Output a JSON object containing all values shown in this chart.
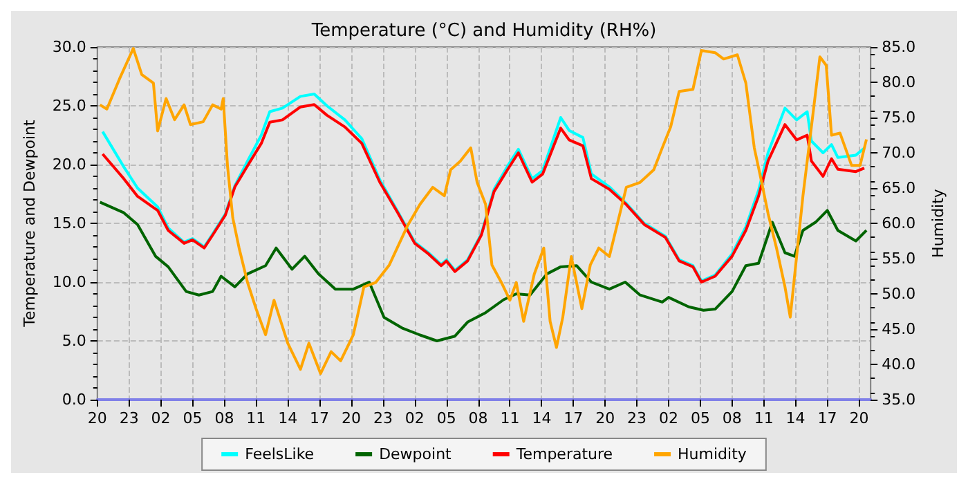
{
  "chart_data": {
    "type": "line",
    "title": "Temperature (°C) and Humidity (RH%)",
    "ylabel": "Temperature and Dewpoint",
    "y2label": "Humidity",
    "xlim": [
      "--01-01T20:00",
      "--01-04T21:06"
    ],
    "xticks": [
      {
        "value": "--01-01T20:00",
        "label": "20"
      },
      {
        "value": "--01-01T23:00",
        "label": "23"
      },
      {
        "value": "--01-02T02:00",
        "label": "02"
      },
      {
        "value": "--01-02T05:00",
        "label": "05"
      },
      {
        "value": "--01-02T08:00",
        "label": "08"
      },
      {
        "value": "--01-02T11:00",
        "label": "11"
      },
      {
        "value": "--01-02T14:00",
        "label": "14"
      },
      {
        "value": "--01-02T17:00",
        "label": "17"
      },
      {
        "value": "--01-02T20:00",
        "label": "20"
      },
      {
        "value": "--01-02T23:00",
        "label": "23"
      },
      {
        "value": "--01-03T02:00",
        "label": "02"
      },
      {
        "value": "--01-03T05:00",
        "label": "05"
      },
      {
        "value": "--01-03T08:00",
        "label": "08"
      },
      {
        "value": "--01-03T11:00",
        "label": "11"
      },
      {
        "value": "--01-03T14:00",
        "label": "14"
      },
      {
        "value": "--01-03T17:00",
        "label": "17"
      },
      {
        "value": "--01-03T20:00",
        "label": "20"
      },
      {
        "value": "--01-03T23:00",
        "label": "23"
      },
      {
        "value": "--01-04T02:00",
        "label": "02"
      },
      {
        "value": "--01-04T05:00",
        "label": "05"
      },
      {
        "value": "--01-04T08:00",
        "label": "08"
      },
      {
        "value": "--01-04T11:00",
        "label": "11"
      },
      {
        "value": "--01-04T14:00",
        "label": "14"
      },
      {
        "value": "--01-04T17:00",
        "label": "17"
      },
      {
        "value": "--01-04T20:00",
        "label": "20"
      }
    ],
    "ylim": [
      0,
      30
    ],
    "yticks": [
      {
        "value": 0,
        "label": "0.0"
      },
      {
        "value": 5,
        "label": "5.0"
      },
      {
        "value": 10,
        "label": "10.0"
      },
      {
        "value": 15,
        "label": "15.0"
      },
      {
        "value": 20,
        "label": "20.0"
      },
      {
        "value": 25,
        "label": "25.0"
      },
      {
        "value": 30,
        "label": "30.0"
      }
    ],
    "y2lim": [
      35,
      85
    ],
    "y2ticks": [
      {
        "value": 35,
        "label": "35.0"
      },
      {
        "value": 40,
        "label": "40.0"
      },
      {
        "value": 45,
        "label": "45.0"
      },
      {
        "value": 50,
        "label": "50.0"
      },
      {
        "value": 55,
        "label": "55.0"
      },
      {
        "value": 60,
        "label": "60.0"
      },
      {
        "value": 65,
        "label": "65.0"
      },
      {
        "value": 70,
        "label": "70.0"
      },
      {
        "value": 75,
        "label": "75.0"
      },
      {
        "value": 80,
        "label": "80.0"
      },
      {
        "value": 85,
        "label": "85.0"
      }
    ],
    "grid": true,
    "legend": "bottom",
    "marker": "none",
    "line_style": "solid",
    "series": [
      {
        "name": "FeelsLike",
        "color": "#00ffff",
        "x": [
          "--01-01T20:30",
          "--01-01T22:30",
          "--01-01T23:48",
          "--01-02T01:42",
          "--01-02T02:42",
          "--01-02T04:12",
          "--01-02T05:00",
          "--01-02T06:06",
          "--01-02T06:54",
          "--01-02T08:06",
          "--01-02T09:00",
          "--01-02T10:12",
          "--01-02T11:30",
          "--01-02T12:18",
          "--01-02T13:30",
          "--01-02T15:12",
          "--01-02T16:30",
          "--01-02T17:42",
          "--01-02T19:24",
          "--01-02T21:00",
          "--01-02T22:42",
          "--01-03T00:24",
          "--01-03T02:00",
          "--01-03T03:18",
          "--01-03T04:30",
          "--01-03T05:00",
          "--01-03T05:48",
          "--01-03T07:00",
          "--01-03T08:18",
          "--01-03T09:30",
          "--01-03T10:48",
          "--01-03T11:48",
          "--01-03T13:06",
          "--01-03T14:06",
          "--01-03T15:48",
          "--01-03T16:36",
          "--01-03T17:54",
          "--01-03T18:42",
          "--01-03T20:24",
          "--01-03T22:00",
          "--01-03T23:42",
          "--01-04T01:42",
          "--01-04T03:00",
          "--01-04T04:18",
          "--01-04T05:06",
          "--01-04T06:24",
          "--01-04T08:00",
          "--01-04T09:18",
          "--01-04T10:30",
          "--01-04T11:24",
          "--01-04T13:00",
          "--01-04T14:06",
          "--01-04T15:06",
          "--01-04T15:30",
          "--01-04T16:36",
          "--01-04T17:24",
          "--01-04T18:00",
          "--01-04T19:42",
          "--01-04T20:30"
        ],
        "values": [
          22.8,
          19.8,
          18,
          16.4,
          14.6,
          13.4,
          13.7,
          13,
          14.1,
          15.8,
          18.2,
          20.3,
          22.5,
          24.5,
          24.8,
          25.8,
          26,
          25,
          23.8,
          22.2,
          18.7,
          16,
          13.4,
          12.5,
          11.5,
          11.9,
          11,
          11.9,
          14.1,
          17.9,
          19.9,
          21.3,
          18.8,
          19.5,
          24,
          22.9,
          22.3,
          19.2,
          18.1,
          16.7,
          15,
          13.9,
          11.9,
          11.4,
          10.1,
          10.6,
          12.4,
          14.7,
          17.8,
          21,
          24.8,
          23.8,
          24.5,
          22,
          21,
          21.7,
          20.6,
          20.8,
          21.4
        ]
      },
      {
        "name": "Dewpoint",
        "color": "#006400",
        "x": [
          "--01-01T20:15",
          "--01-01T22:30",
          "--01-01T23:48",
          "--01-02T01:30",
          "--01-02T02:42",
          "--01-02T04:24",
          "--01-02T05:36",
          "--01-02T06:54",
          "--01-02T07:42",
          "--01-02T09:00",
          "--01-02T10:12",
          "--01-02T11:54",
          "--01-02T12:54",
          "--01-02T14:24",
          "--01-02T15:36",
          "--01-02T16:54",
          "--01-02T18:30",
          "--01-02T20:12",
          "--01-02T21:42",
          "--01-02T23:06",
          "--01-03T00:48",
          "--01-03T02:30",
          "--01-03T04:06",
          "--01-03T05:48",
          "--01-03T07:00",
          "--01-03T08:42",
          "--01-03T10:24",
          "--01-03T11:36",
          "--01-03T12:54",
          "--01-03T14:30",
          "--01-03T15:48",
          "--01-03T17:18",
          "--01-03T18:42",
          "--01-03T20:24",
          "--01-03T21:54",
          "--01-03T23:18",
          "--01-04T01:24",
          "--01-04T02:00",
          "--01-04T03:54",
          "--01-04T05:18",
          "--01-04T06:24",
          "--01-04T08:00",
          "--01-04T09:18",
          "--01-04T10:30",
          "--01-04T11:24",
          "--01-04T11:48",
          "--01-04T13:00",
          "--01-04T13:54",
          "--01-04T14:42",
          "--01-04T15:54",
          "--01-04T17:00",
          "--01-04T18:00",
          "--01-04T19:42",
          "--01-04T20:42"
        ],
        "values": [
          16.8,
          15.9,
          14.9,
          12.2,
          11.3,
          9.2,
          8.9,
          9.2,
          10.5,
          9.6,
          10.7,
          11.4,
          12.9,
          11.1,
          12.2,
          10.7,
          9.4,
          9.4,
          10,
          7,
          6.1,
          5.5,
          5,
          5.4,
          6.6,
          7.4,
          8.5,
          9,
          8.9,
          10.7,
          11.3,
          11.4,
          10,
          9.4,
          10,
          8.9,
          8.3,
          8.7,
          7.9,
          7.6,
          7.7,
          9.2,
          11.4,
          11.6,
          14,
          15.1,
          12.5,
          12.2,
          14.4,
          15.1,
          16.1,
          14.4,
          13.5,
          14.4
        ]
      },
      {
        "name": "Temperature",
        "color": "#ff0000",
        "x": [
          "--01-01T20:30",
          "--01-01T22:30",
          "--01-01T23:48",
          "--01-02T01:42",
          "--01-02T02:42",
          "--01-02T04:12",
          "--01-02T05:00",
          "--01-02T06:06",
          "--01-02T06:54",
          "--01-02T08:06",
          "--01-02T09:00",
          "--01-02T10:12",
          "--01-02T11:30",
          "--01-02T12:18",
          "--01-02T13:30",
          "--01-02T15:12",
          "--01-02T16:30",
          "--01-02T17:42",
          "--01-02T19:24",
          "--01-02T21:00",
          "--01-02T22:42",
          "--01-03T00:24",
          "--01-03T02:00",
          "--01-03T03:18",
          "--01-03T04:30",
          "--01-03T05:00",
          "--01-03T05:48",
          "--01-03T07:00",
          "--01-03T08:18",
          "--01-03T09:30",
          "--01-03T10:48",
          "--01-03T11:48",
          "--01-03T13:06",
          "--01-03T14:06",
          "--01-03T15:48",
          "--01-03T16:36",
          "--01-03T17:54",
          "--01-03T18:42",
          "--01-03T20:24",
          "--01-03T22:00",
          "--01-03T23:42",
          "--01-04T01:42",
          "--01-04T03:00",
          "--01-04T04:18",
          "--01-04T05:06",
          "--01-04T06:24",
          "--01-04T08:00",
          "--01-04T09:18",
          "--01-04T10:30",
          "--01-04T11:24",
          "--01-04T13:00",
          "--01-04T14:06",
          "--01-04T15:06",
          "--01-04T15:30",
          "--01-04T16:36",
          "--01-04T17:24",
          "--01-04T18:00",
          "--01-04T19:42",
          "--01-04T20:30"
        ],
        "values": [
          20.9,
          18.8,
          17.3,
          16.1,
          14.4,
          13.3,
          13.6,
          12.9,
          14,
          15.7,
          18.1,
          19.9,
          21.8,
          23.6,
          23.8,
          24.9,
          25.1,
          24.2,
          23.2,
          21.8,
          18.5,
          15.9,
          13.3,
          12.4,
          11.4,
          11.8,
          10.9,
          11.8,
          14,
          17.7,
          19.6,
          21,
          18.5,
          19.2,
          23.1,
          22.1,
          21.6,
          18.8,
          17.9,
          16.6,
          14.9,
          13.8,
          11.8,
          11.3,
          10,
          10.5,
          12.2,
          14.4,
          17.3,
          20.3,
          23.4,
          22.1,
          22.5,
          20.3,
          19,
          20.5,
          19.6,
          19.4,
          19.7
        ]
      },
      {
        "name": "Humidity",
        "color": "#ffa500",
        "axis": "y2",
        "x": [
          "--01-01T20:15",
          "--01-01T20:54",
          "--01-01T22:06",
          "--01-01T23:24",
          "--01-02T00:12",
          "--01-02T01:18",
          "--01-02T01:42",
          "--01-02T02:30",
          "--01-02T03:18",
          "--01-02T04:12",
          "--01-02T04:48",
          "--01-02T06:00",
          "--01-02T06:54",
          "--01-02T07:42",
          "--01-02T07:54",
          "--01-02T08:18",
          "--01-02T08:48",
          "--01-02T09:24",
          "--01-02T10:12",
          "--01-02T11:00",
          "--01-02T11:54",
          "--01-02T12:42",
          "--01-02T14:00",
          "--01-02T15:12",
          "--01-02T16:00",
          "--01-02T17:06",
          "--01-02T18:06",
          "--01-02T19:00",
          "--01-02T20:12",
          "--01-02T21:12",
          "--01-02T22:18",
          "--01-02T23:36",
          "--01-03T01:18",
          "--01-03T02:30",
          "--01-03T03:42",
          "--01-03T04:48",
          "--01-03T05:24",
          "--01-03T06:18",
          "--01-03T07:18",
          "--01-03T07:54",
          "--01-03T08:42",
          "--01-03T09:18",
          "--01-03T10:12",
          "--01-03T11:00",
          "--01-03T11:36",
          "--01-03T12:18",
          "--01-03T13:18",
          "--01-03T14:12",
          "--01-03T14:48",
          "--01-03T15:24",
          "--01-03T16:00",
          "--01-03T16:48",
          "--01-03T17:48",
          "--01-03T18:36",
          "--01-03T19:24",
          "--01-03T20:24",
          "--01-03T21:12",
          "--01-03T22:00",
          "--01-03T23:18",
          "--01-04T00:36",
          "--01-04T01:24",
          "--01-04T02:12",
          "--01-04T03:00",
          "--01-04T04:18",
          "--01-04T05:06",
          "--01-04T06:24",
          "--01-04T07:12",
          "--01-04T08:30",
          "--01-04T09:18",
          "--01-04T10:06",
          "--01-04T10:48",
          "--01-04T11:24",
          "--01-04T12:12",
          "--01-04T13:00",
          "--01-04T13:30",
          "--01-04T14:06",
          "--01-04T14:42",
          "--01-04T15:30",
          "--01-04T16:18",
          "--01-04T16:54",
          "--01-04T17:24",
          "--01-04T18:12",
          "--01-04T19:18",
          "--01-04T20:06",
          "--01-04T20:42"
        ],
        "values": [
          76.8,
          76.2,
          80.5,
          84.8,
          81.1,
          79.9,
          73.1,
          77.7,
          74.7,
          76.8,
          74,
          74.4,
          76.8,
          76.2,
          77.7,
          68.2,
          60.8,
          56.5,
          51.6,
          47.9,
          44.2,
          49.1,
          43,
          39.3,
          43,
          38.7,
          41.8,
          40.5,
          44.2,
          51,
          51.6,
          54.1,
          59.6,
          62.7,
          65.1,
          63.9,
          67.6,
          68.8,
          70.7,
          65.8,
          62.7,
          54.1,
          51.6,
          49.1,
          51.6,
          46.1,
          52.8,
          56.5,
          46.1,
          42.4,
          46.7,
          55.3,
          47.9,
          54.1,
          56.5,
          55.3,
          60.2,
          65.1,
          65.8,
          67.6,
          70.7,
          73.7,
          78.7,
          79,
          84.5,
          84.2,
          83.3,
          83.9,
          79.9,
          70.7,
          65.8,
          61.4,
          56.5,
          51,
          46.7,
          55.3,
          63.9,
          73.7,
          83.6,
          82.4,
          72.5,
          72.8,
          68.2,
          68.2,
          71.9
        ]
      }
    ]
  }
}
